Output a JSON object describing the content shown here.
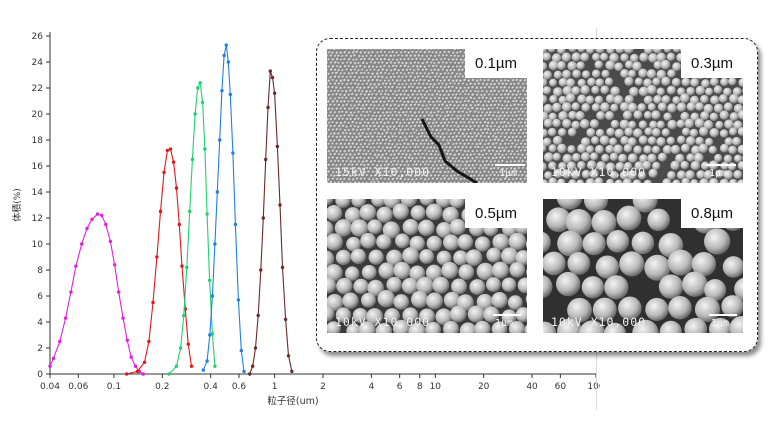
{
  "chart_data": {
    "type": "line",
    "x_scale": "log",
    "xlim": [
      0.04,
      100
    ],
    "ylim": [
      0,
      26
    ],
    "xlabel": "粒子径(um)",
    "ylabel": "体積(%)",
    "grid": false,
    "x_ticks": [
      0.04,
      0.06,
      0.1,
      0.2,
      0.4,
      0.6,
      1,
      2,
      4,
      6,
      8,
      10,
      20,
      40,
      60,
      100
    ],
    "x_tick_labels": [
      "0.04",
      "0.06",
      "0.1",
      "0.2",
      "0.4",
      "0.6",
      "1",
      "2",
      "4",
      "6",
      "8",
      "10",
      "20",
      "40",
      "60",
      "100"
    ],
    "y_ticks": [
      0,
      2,
      4,
      6,
      8,
      10,
      12,
      14,
      16,
      18,
      20,
      22,
      24,
      26
    ],
    "y_tick_labels": [
      "0",
      "2",
      "4",
      "6",
      "8",
      "10",
      "12",
      "14",
      "16",
      "18",
      "20",
      "22",
      "24",
      "26"
    ],
    "series": [
      {
        "color": "#e020e0",
        "x": [
          0.04,
          0.042,
          0.046,
          0.05,
          0.054,
          0.058,
          0.063,
          0.068,
          0.073,
          0.079,
          0.084,
          0.089,
          0.095,
          0.101,
          0.107,
          0.114,
          0.121,
          0.128,
          0.136,
          0.144,
          0.152
        ],
        "y": [
          0.6,
          1.2,
          2.5,
          4.3,
          6.3,
          8.3,
          10.0,
          11.2,
          11.9,
          12.3,
          12.2,
          11.5,
          10.2,
          8.4,
          6.3,
          4.3,
          2.6,
          1.3,
          0.6,
          0.2,
          0.0
        ]
      },
      {
        "color": "#e01818",
        "x": [
          0.12,
          0.14,
          0.155,
          0.165,
          0.175,
          0.185,
          0.195,
          0.205,
          0.215,
          0.225,
          0.235,
          0.245,
          0.255,
          0.265,
          0.278,
          0.29,
          0.304
        ],
        "y": [
          0.0,
          0.2,
          0.9,
          2.5,
          5.5,
          9.0,
          12.5,
          15.5,
          17.2,
          17.3,
          16.3,
          14.3,
          11.5,
          8.3,
          5.0,
          2.3,
          0.6
        ]
      },
      {
        "color": "#20d070",
        "x": [
          0.22,
          0.245,
          0.26,
          0.272,
          0.284,
          0.296,
          0.308,
          0.32,
          0.332,
          0.344,
          0.356,
          0.368,
          0.38,
          0.394,
          0.41,
          0.425
        ],
        "y": [
          0.0,
          0.6,
          2.0,
          4.5,
          8.2,
          12.5,
          16.5,
          20.0,
          22.0,
          22.4,
          20.9,
          17.3,
          12.3,
          7.2,
          3.1,
          0.6
        ]
      },
      {
        "color": "#2080e0",
        "x": [
          0.36,
          0.38,
          0.395,
          0.41,
          0.425,
          0.44,
          0.455,
          0.47,
          0.485,
          0.5,
          0.515,
          0.53,
          0.55,
          0.57,
          0.595,
          0.62,
          0.645
        ],
        "y": [
          0.3,
          1.0,
          3.0,
          6.0,
          10.0,
          14.0,
          18.0,
          21.8,
          24.5,
          25.3,
          24.0,
          21.5,
          17.0,
          11.5,
          5.7,
          1.8,
          0.2
        ]
      },
      {
        "color": "#6a2a2a",
        "x": [
          0.7,
          0.73,
          0.76,
          0.79,
          0.82,
          0.85,
          0.88,
          0.91,
          0.94,
          0.97,
          1.0,
          1.04,
          1.08,
          1.12,
          1.17,
          1.22,
          1.28
        ],
        "y": [
          0.0,
          0.6,
          2.0,
          4.5,
          8.0,
          12.0,
          16.5,
          20.5,
          23.3,
          22.8,
          21.6,
          17.5,
          13.0,
          8.2,
          4.2,
          1.4,
          0.2
        ]
      }
    ]
  },
  "sem_images": [
    {
      "size_label": "0.1µm",
      "caption": "15kV  X10,000",
      "scale_label": "1µm"
    },
    {
      "size_label": "0.3µm",
      "caption": "10kV  X10,000",
      "scale_label": "1µm"
    },
    {
      "size_label": "0.5µm",
      "caption": "10kV  X10,000",
      "scale_label": "1µm"
    },
    {
      "size_label": "0.8µm",
      "caption": "10kV  X10,000",
      "scale_label": "1µm"
    }
  ]
}
